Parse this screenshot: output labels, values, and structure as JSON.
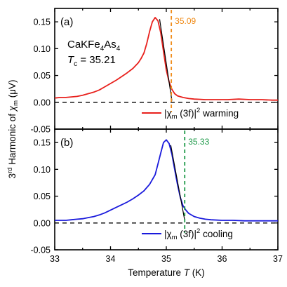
{
  "chart_data": [
    {
      "type": "line",
      "panel_label": "(a)",
      "sample": "CaKFe",
      "sample_sub1": "4",
      "sample_mid": "As",
      "sample_sub2": "4",
      "tc_symbol": "T",
      "tc_sub": "c",
      "tc_value": " = 35.21",
      "xlim": [
        33,
        37
      ],
      "ylim": [
        -0.05,
        0.175
      ],
      "yticks": [
        -0.05,
        0.0,
        0.05,
        0.1,
        0.15
      ],
      "ytick_labels": [
        "-0.05",
        "0.00",
        "0.05",
        "0.10",
        "0.15"
      ],
      "vline": {
        "x": 35.09,
        "label": "35.09",
        "color": "#f08c1a"
      },
      "fit_line": {
        "x": [
          34.88,
          35.1
        ],
        "y": [
          0.155,
          0.003
        ]
      },
      "series": [
        {
          "name_prefix": "|χ",
          "name_sub": "m",
          "name_mid": " (3f)|",
          "name_sup": "2",
          "name_suffix": " warming",
          "color": "#e8201c",
          "x": [
            33.0,
            33.1,
            33.2,
            33.3,
            33.4,
            33.5,
            33.6,
            33.7,
            33.8,
            33.9,
            34.0,
            34.1,
            34.2,
            34.3,
            34.4,
            34.5,
            34.55,
            34.6,
            34.65,
            34.7,
            34.75,
            34.8,
            34.85,
            34.9,
            34.95,
            35.0,
            35.05,
            35.1,
            35.15,
            35.2,
            35.3,
            35.4,
            35.5,
            35.7,
            35.9,
            36.1,
            36.3,
            36.5,
            36.7,
            36.9,
            37.0
          ],
          "y": [
            0.008,
            0.009,
            0.009,
            0.01,
            0.011,
            0.013,
            0.016,
            0.019,
            0.023,
            0.029,
            0.035,
            0.041,
            0.048,
            0.055,
            0.063,
            0.074,
            0.082,
            0.092,
            0.11,
            0.132,
            0.15,
            0.158,
            0.152,
            0.13,
            0.095,
            0.06,
            0.038,
            0.024,
            0.016,
            0.012,
            0.009,
            0.007,
            0.006,
            0.005,
            0.005,
            0.005,
            0.006,
            0.005,
            0.005,
            0.004,
            0.004
          ]
        }
      ]
    },
    {
      "type": "line",
      "panel_label": "(b)",
      "xlim": [
        33,
        37
      ],
      "ylim": [
        -0.05,
        0.175
      ],
      "xticks": [
        33,
        34,
        35,
        36,
        37
      ],
      "xtick_labels": [
        "33",
        "34",
        "35",
        "36",
        "37"
      ],
      "yticks": [
        -0.05,
        0.0,
        0.05,
        0.1,
        0.15
      ],
      "ytick_labels": [
        "-0.05",
        "0.00",
        "0.05",
        "0.10",
        "0.15"
      ],
      "vline": {
        "x": 35.33,
        "label": "35.33",
        "color": "#1f9a4a"
      },
      "fit_line": {
        "x": [
          35.08,
          35.33
        ],
        "y": [
          0.145,
          0.005
        ]
      },
      "series": [
        {
          "name_prefix": "|χ",
          "name_sub": "m",
          "name_mid": " (3f)|",
          "name_sup": "2",
          "name_suffix": " cooling",
          "color": "#1a1adc",
          "x": [
            33.0,
            33.1,
            33.2,
            33.3,
            33.4,
            33.5,
            33.6,
            33.7,
            33.8,
            33.9,
            34.0,
            34.1,
            34.2,
            34.3,
            34.4,
            34.5,
            34.6,
            34.7,
            34.8,
            34.85,
            34.9,
            34.95,
            35.0,
            35.05,
            35.1,
            35.15,
            35.2,
            35.25,
            35.3,
            35.35,
            35.4,
            35.5,
            35.6,
            35.7,
            35.8,
            36.0,
            36.2,
            36.4,
            36.6,
            36.8,
            37.0
          ],
          "y": [
            0.005,
            0.005,
            0.005,
            0.006,
            0.007,
            0.008,
            0.01,
            0.012,
            0.015,
            0.019,
            0.024,
            0.029,
            0.034,
            0.039,
            0.045,
            0.052,
            0.06,
            0.072,
            0.09,
            0.11,
            0.13,
            0.15,
            0.155,
            0.148,
            0.128,
            0.1,
            0.072,
            0.048,
            0.032,
            0.024,
            0.018,
            0.012,
            0.009,
            0.007,
            0.006,
            0.005,
            0.005,
            0.004,
            0.004,
            0.004,
            0.004
          ]
        }
      ]
    }
  ],
  "axes": {
    "xlabel": "Temperature ",
    "xlabel_var": "T",
    "xlabel_unit": " (K)",
    "ylabel_pre": "3",
    "ylabel_sup": "rd",
    "ylabel_mid": " Harmonic of ",
    "ylabel_chi": "χ",
    "ylabel_sub": "m",
    "ylabel_unit": " (μV)"
  }
}
